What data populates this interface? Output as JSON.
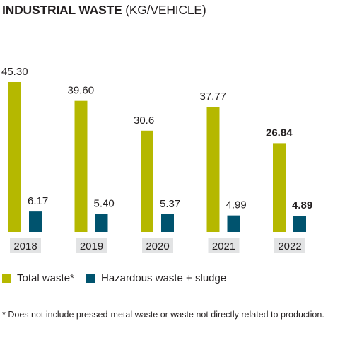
{
  "title": {
    "bold": "INDUSTRIAL WASTE",
    "rest": " (KG/VEHICLE)"
  },
  "colors": {
    "total": "#b5b800",
    "hazardous": "#00536e",
    "tick_bg": "#e2e3e4"
  },
  "legend": {
    "total": "Total waste*",
    "hazardous": "Hazardous waste + sludge"
  },
  "footnote": "* Does not include pressed-metal waste or waste not directly related to production.",
  "chart_data": {
    "type": "bar",
    "categories": [
      "2018",
      "2019",
      "2020",
      "2021",
      "2022"
    ],
    "series": [
      {
        "name": "Total waste*",
        "values": [
          45.3,
          39.6,
          30.6,
          37.77,
          26.84
        ],
        "labels": [
          "45.30",
          "39.60",
          "30.6",
          "37.77",
          "26.84"
        ]
      },
      {
        "name": "Hazardous waste + sludge",
        "values": [
          6.17,
          5.4,
          5.37,
          4.99,
          4.89
        ],
        "labels": [
          "6.17",
          "5.40",
          "5.37",
          "4.99",
          "4.89"
        ]
      }
    ],
    "bold_category": "2022",
    "ylim": [
      0,
      45.3
    ],
    "grid": false,
    "legend_position": "bottom-left"
  }
}
